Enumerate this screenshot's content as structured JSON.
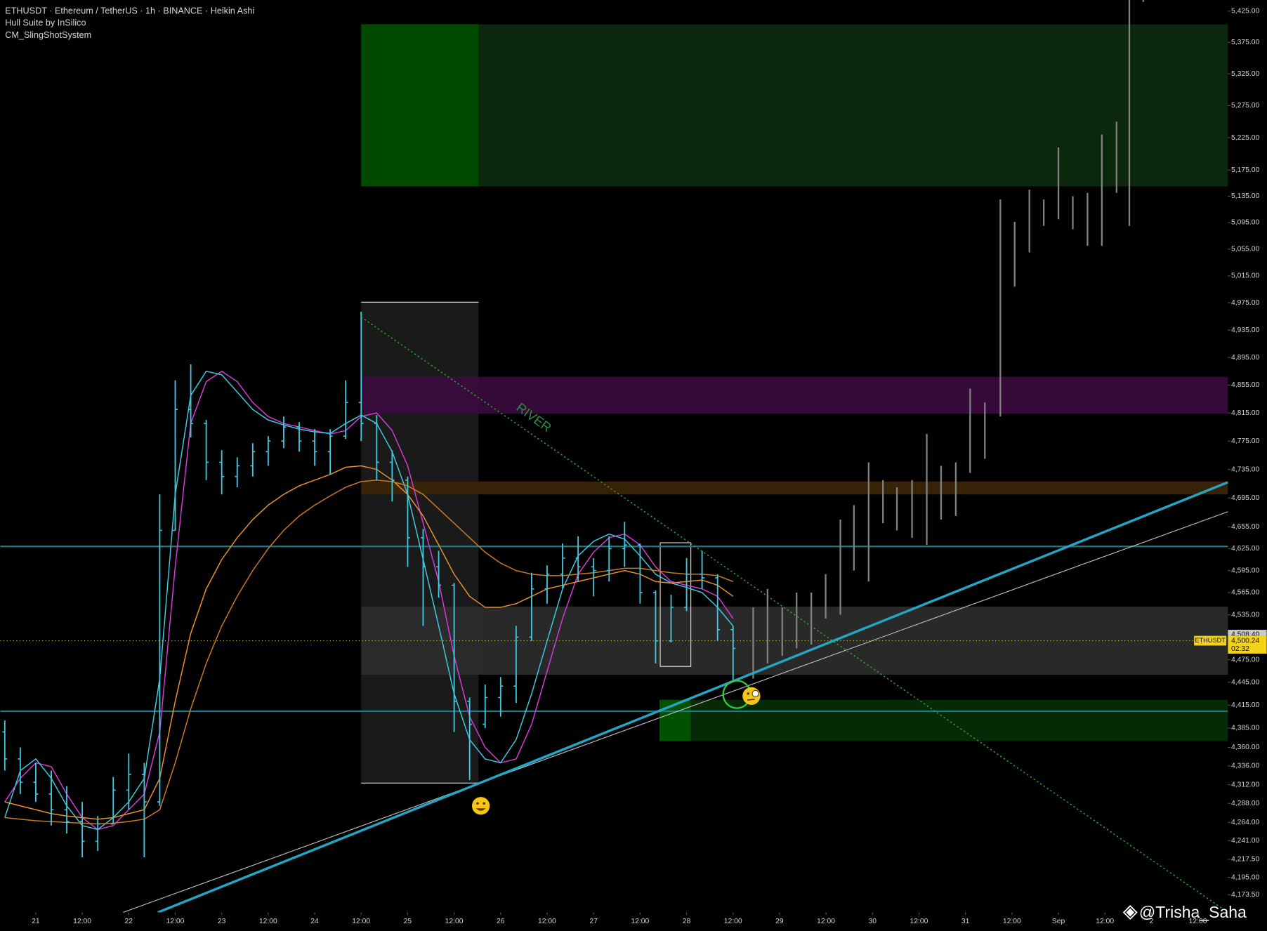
{
  "chart_data": {
    "type": "candlestick",
    "title": "ETHUSDT · Ethereum / TetherUS · 1h · BINANCE · Heikin Ashi",
    "indicators": [
      "Hull Suite by InSilico",
      "CM_SlingShotSystem"
    ],
    "annotation": "RIVER",
    "watermark": "@Trisha_Saha",
    "symbol": "ETHUSDT",
    "countdown": "02:32",
    "last_price": {
      "value": 4500.24,
      "label": "4,500.24"
    },
    "prior_price": {
      "value": 4508.4,
      "label": "4,508.40"
    },
    "log_scale": true,
    "color": "#3fc9df",
    "xlim": [
      -9.17,
      307.76
    ],
    "ylim": [
      4151.5,
      5443
    ],
    "xticks": [
      {
        "value": 0,
        "label": "21"
      },
      {
        "value": 12,
        "label": "12:00"
      },
      {
        "value": 24,
        "label": "22"
      },
      {
        "value": 36,
        "label": "12:00"
      },
      {
        "value": 48,
        "label": "23"
      },
      {
        "value": 60,
        "label": "12:00"
      },
      {
        "value": 72,
        "label": "24"
      },
      {
        "value": 84,
        "label": "12:00"
      },
      {
        "value": 96,
        "label": "25"
      },
      {
        "value": 108,
        "label": "12:00"
      },
      {
        "value": 120,
        "label": "26"
      },
      {
        "value": 132,
        "label": "12:00"
      },
      {
        "value": 144,
        "label": "27"
      },
      {
        "value": 156,
        "label": "12:00"
      },
      {
        "value": 168,
        "label": "28"
      },
      {
        "value": 180,
        "label": "12:00"
      },
      {
        "value": 192,
        "label": "29"
      },
      {
        "value": 204,
        "label": "12:00"
      },
      {
        "value": 216,
        "label": "30"
      },
      {
        "value": 228,
        "label": "12:00"
      },
      {
        "value": 240,
        "label": "31"
      },
      {
        "value": 252,
        "label": "12:00"
      },
      {
        "value": 264,
        "label": "Sep"
      },
      {
        "value": 276,
        "label": "12:00"
      },
      {
        "value": 288,
        "label": "2"
      },
      {
        "value": 300,
        "label": "12:00"
      }
    ],
    "yticks": [
      {
        "value": 5425,
        "label": "5,425.00"
      },
      {
        "value": 5375,
        "label": "5,375.00"
      },
      {
        "value": 5325,
        "label": "5,325.00"
      },
      {
        "value": 5275,
        "label": "5,275.00"
      },
      {
        "value": 5225,
        "label": "5,225.00"
      },
      {
        "value": 5175,
        "label": "5,175.00"
      },
      {
        "value": 5135,
        "label": "5,135.00"
      },
      {
        "value": 5095,
        "label": "5,095.00"
      },
      {
        "value": 5055,
        "label": "5,055.00"
      },
      {
        "value": 5015,
        "label": "5,015.00"
      },
      {
        "value": 4975,
        "label": "4,975.00"
      },
      {
        "value": 4935,
        "label": "4,935.00"
      },
      {
        "value": 4895,
        "label": "4,895.00"
      },
      {
        "value": 4855,
        "label": "4,855.00"
      },
      {
        "value": 4815,
        "label": "4,815.00"
      },
      {
        "value": 4775,
        "label": "4,775.00"
      },
      {
        "value": 4735,
        "label": "4,735.00"
      },
      {
        "value": 4695,
        "label": "4,695.00"
      },
      {
        "value": 4655,
        "label": "4,655.00"
      },
      {
        "value": 4625,
        "label": "4,625.00"
      },
      {
        "value": 4595,
        "label": "4,595.00"
      },
      {
        "value": 4565,
        "label": "4,565.00"
      },
      {
        "value": 4535,
        "label": "4,535.00"
      },
      {
        "value": 4475,
        "label": "4,475.00"
      },
      {
        "value": 4445,
        "label": "4,445.00"
      },
      {
        "value": 4415,
        "label": "4,415.00"
      },
      {
        "value": 4385,
        "label": "4,385.00"
      },
      {
        "value": 4360,
        "label": "4,360.00"
      },
      {
        "value": 4336,
        "label": "4,336.00"
      },
      {
        "value": 4312,
        "label": "4,312.00"
      },
      {
        "value": 4288,
        "label": "4,288.00"
      },
      {
        "value": 4264,
        "label": "4,264.00"
      },
      {
        "value": 4241,
        "label": "4,241.00"
      },
      {
        "value": 4217.5,
        "label": "4,217.50"
      },
      {
        "value": 4195,
        "label": "4,195.00"
      },
      {
        "value": 4173.5,
        "label": "4,173.50"
      }
    ],
    "x": [
      -8,
      -4,
      0,
      4,
      8,
      12,
      16,
      20,
      24,
      28,
      32,
      36,
      40,
      44,
      48,
      52,
      56,
      60,
      64,
      68,
      72,
      76,
      80,
      84,
      88,
      92,
      96,
      100,
      104,
      108,
      112,
      116,
      120,
      124,
      128,
      132,
      136,
      140,
      144,
      148,
      152,
      156,
      160,
      164,
      168,
      172,
      176,
      180
    ],
    "open": [
      4380,
      4345,
      4315,
      4300,
      4280,
      4265,
      4240,
      4262,
      4305,
      4325,
      4290,
      4650,
      4820,
      4800,
      4745,
      4725,
      4740,
      4760,
      4775,
      4795,
      4775,
      4760,
      4782,
      4830,
      4800,
      4745,
      4720,
      4640,
      4600,
      4575,
      4420,
      4390,
      4425,
      4440,
      4505,
      4570,
      4590,
      4612,
      4600,
      4595,
      4625,
      4630,
      4565,
      4500,
      4545,
      4590,
      4585,
      4515
    ],
    "high": [
      4395,
      4360,
      4340,
      4330,
      4310,
      4290,
      4272,
      4322,
      4352,
      4340,
      4700,
      4862,
      4885,
      4805,
      4762,
      4752,
      4772,
      4782,
      4810,
      4802,
      4792,
      4792,
      4862,
      4962,
      4812,
      4762,
      4725,
      4652,
      4622,
      4578,
      4425,
      4442,
      4452,
      4520,
      4592,
      4602,
      4632,
      4642,
      4612,
      4642,
      4662,
      4632,
      4568,
      4562,
      4612,
      4622,
      4590,
      4520
    ],
    "low": [
      4330,
      4300,
      4290,
      4260,
      4250,
      4220,
      4228,
      4262,
      4280,
      4220,
      4285,
      4650,
      4780,
      4720,
      4700,
      4710,
      4725,
      4740,
      4765,
      4760,
      4740,
      4728,
      4778,
      4775,
      4720,
      4690,
      4600,
      4520,
      4558,
      4380,
      4318,
      4385,
      4400,
      4418,
      4500,
      4550,
      4570,
      4580,
      4560,
      4580,
      4600,
      4550,
      4470,
      4498,
      4540,
      4570,
      4500,
      4448
    ],
    "close": [
      4345,
      4315,
      4300,
      4280,
      4265,
      4240,
      4262,
      4305,
      4325,
      4290,
      4650,
      4820,
      4800,
      4745,
      4725,
      4740,
      4760,
      4775,
      4795,
      4775,
      4760,
      4782,
      4830,
      4800,
      4745,
      4720,
      4640,
      4600,
      4575,
      4420,
      4390,
      4425,
      4440,
      4505,
      4570,
      4590,
      4612,
      4600,
      4595,
      4625,
      4630,
      4565,
      4500,
      4545,
      4590,
      4585,
      4515,
      4490
    ],
    "lines": [
      {
        "color": "#d63ad6",
        "values": [
          4290,
          4320,
          4340,
          4335,
          4300,
          4270,
          4255,
          4260,
          4280,
          4300,
          4380,
          4600,
          4800,
          4860,
          4875,
          4860,
          4830,
          4810,
          4800,
          4795,
          4790,
          4785,
          4790,
          4810,
          4815,
          4790,
          4740,
          4660,
          4580,
          4480,
          4400,
          4360,
          4340,
          4345,
          4390,
          4460,
          4530,
          4590,
          4620,
          4640,
          4645,
          4630,
          4600,
          4580,
          4575,
          4570,
          4560,
          4530
        ]
      },
      {
        "color": "#3fc9df",
        "values": [
          4270,
          4330,
          4345,
          4320,
          4285,
          4260,
          4255,
          4270,
          4290,
          4320,
          4450,
          4700,
          4840,
          4875,
          4870,
          4845,
          4820,
          4805,
          4798,
          4792,
          4788,
          4786,
          4800,
          4812,
          4800,
          4760,
          4700,
          4610,
          4520,
          4430,
          4370,
          4345,
          4340,
          4370,
          4430,
          4500,
          4570,
          4615,
          4635,
          4645,
          4638,
          4615,
          4590,
          4578,
          4572,
          4565,
          4545,
          4520
        ]
      },
      {
        "color": "#e8902a",
        "values": [
          4290,
          4285,
          4280,
          4275,
          4272,
          4270,
          4268,
          4270,
          4275,
          4280,
          4320,
          4420,
          4510,
          4570,
          4610,
          4640,
          4665,
          4685,
          4700,
          4712,
          4720,
          4728,
          4738,
          4740,
          4735,
          4720,
          4700,
          4670,
          4630,
          4590,
          4560,
          4545,
          4545,
          4550,
          4560,
          4570,
          4575,
          4580,
          4585,
          4590,
          4595,
          4590,
          4580,
          4578,
          4580,
          4582,
          4575,
          4560
        ]
      },
      {
        "color": "#c97a22",
        "values": [
          4270,
          4268,
          4266,
          4265,
          4264,
          4263,
          4262,
          4263,
          4265,
          4268,
          4280,
          4340,
          4410,
          4470,
          4520,
          4560,
          4595,
          4625,
          4650,
          4670,
          4685,
          4698,
          4710,
          4718,
          4720,
          4718,
          4712,
          4700,
          4680,
          4660,
          4640,
          4620,
          4605,
          4595,
          4590,
          4588,
          4588,
          4590,
          4592,
          4595,
          4598,
          4598,
          4595,
          4592,
          4590,
          4590,
          4588,
          4580
        ]
      }
    ],
    "projection": {
      "color": "#808080",
      "x": [
        185.2,
        188.9,
        192.7,
        196.4,
        200.2,
        203.9,
        207.7,
        211.2,
        215.0,
        218.7,
        222.3,
        226.2,
        230.0,
        233.7,
        237.5,
        241.2,
        245.0,
        249.0,
        252.7,
        256.5,
        260.2,
        264.0,
        267.7,
        271.5,
        275.2,
        279.0,
        282.3,
        285.9
      ],
      "high": [
        4545,
        4570,
        4545,
        4565,
        4565,
        4590,
        4665,
        4685,
        4745,
        4720,
        4710,
        4720,
        4785,
        4740,
        4745,
        4850,
        4830,
        5130,
        5096,
        5145,
        5130,
        5210,
        5135,
        5140,
        5230,
        5250,
        5460,
        5460
      ],
      "low": [
        4450,
        4470,
        4480,
        4490,
        4495,
        4530,
        4535,
        4595,
        4580,
        4660,
        4650,
        4640,
        4630,
        4665,
        4670,
        4730,
        4750,
        4810,
        4999,
        5050,
        5090,
        5100,
        5085,
        5060,
        5060,
        5140,
        5090,
        5440
      ]
    },
    "zones": [
      {
        "x_start": 84,
        "y": [
          5150,
          5404
        ],
        "color": "#0d2b0d"
      },
      {
        "x_start": 84,
        "y": [
          4814,
          4867
        ],
        "color": "#3a0b3e"
      },
      {
        "x_start": 84,
        "y": [
          4700,
          4718
        ],
        "color": "#3a2508"
      },
      {
        "x_start": 84,
        "y": [
          4455,
          4546
        ],
        "color": "#2c2c2c"
      },
      {
        "x_start": 161,
        "y": [
          4368,
          4422
        ],
        "color": "#062d06"
      }
    ],
    "range_box": {
      "x": [
        84,
        114.3
      ],
      "y": [
        4314,
        4976
      ],
      "color": "#1a1a1a"
    },
    "blocks": [
      {
        "x": [
          84,
          114.3
        ],
        "y": [
          5150,
          5404
        ],
        "color": "#004a00"
      },
      {
        "x": [
          161,
          169.1
        ],
        "y": [
          4368,
          4422
        ],
        "color": "#005200"
      }
    ],
    "outline_box": {
      "x": [
        161.2,
        169.1
      ],
      "y": [
        4466,
        4633
      ]
    },
    "hlines": [
      4628,
      4407
    ],
    "hline_color": "#1b7a86",
    "trendlines": [
      {
        "x": [
          22.5,
          307.76
        ],
        "y": [
          4151.5,
          4676
        ],
        "color": "#bbbbbb",
        "style": "thin"
      },
      {
        "x": [
          31.5,
          307.76
        ],
        "y": [
          4151.5,
          4717
        ],
        "color": "#22a6c4",
        "style": "thick"
      },
      {
        "x": [
          84,
          306.1
        ],
        "y": [
          4954,
          4157
        ],
        "color": "#22b322",
        "style": "dotted"
      }
    ]
  }
}
